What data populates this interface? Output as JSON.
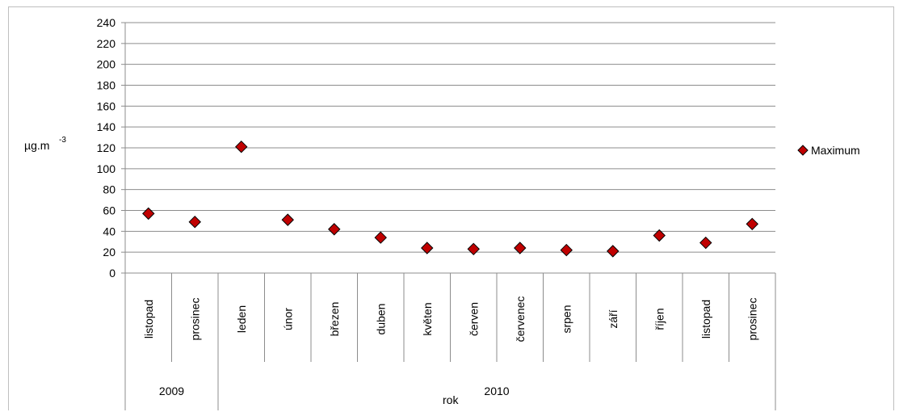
{
  "chart_data": {
    "type": "scatter",
    "ylabel": "µg.m",
    "ylabel_superscript": "-3",
    "xlabel": "rok",
    "ylim": [
      0,
      240
    ],
    "yticks": [
      0,
      20,
      40,
      60,
      80,
      100,
      120,
      140,
      160,
      180,
      200,
      220,
      240
    ],
    "grid": true,
    "legend_position": "right",
    "categories": [
      "listopad",
      "prosinec",
      "leden",
      "únor",
      "březen",
      "duben",
      "květen",
      "červen",
      "červenec",
      "srpen",
      "září",
      "říjen",
      "listopad",
      "prosinec"
    ],
    "groups": [
      {
        "label": "2009",
        "count": 2
      },
      {
        "label": "2010",
        "count": 12
      }
    ],
    "series": [
      {
        "name": "Maximum",
        "marker": "diamond",
        "color": "#c00000",
        "values": [
          57,
          49,
          121,
          51,
          42,
          34,
          24,
          23,
          24,
          22,
          21,
          36,
          29,
          47
        ]
      }
    ]
  }
}
